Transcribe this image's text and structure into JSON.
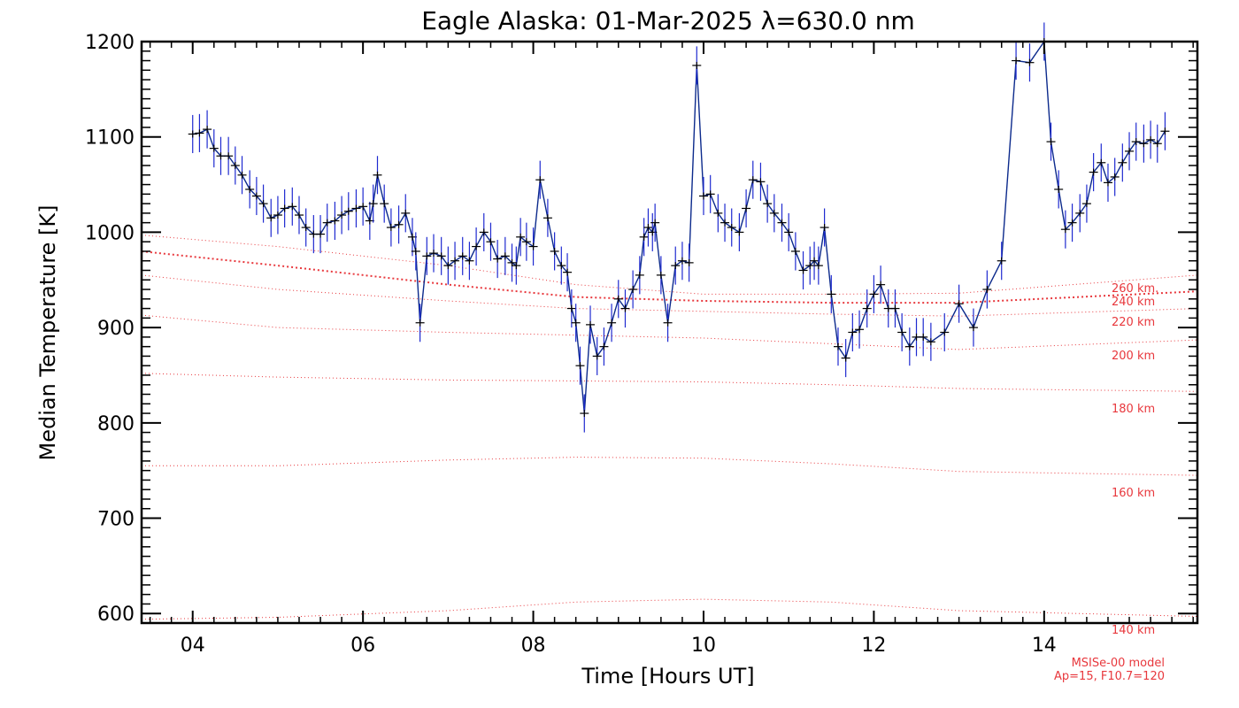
{
  "chart_data": {
    "type": "line",
    "title": "Eagle Alaska: 01-Mar-2025 λ=630.0 nm",
    "xlabel": "Time [Hours UT]",
    "ylabel": "Median Temperature [K]",
    "xlim": [
      3.4,
      15.8
    ],
    "ylim": [
      590,
      1200
    ],
    "x_ticks": [
      4,
      6,
      8,
      10,
      12,
      14
    ],
    "x_tick_labels": [
      "04",
      "06",
      "08",
      "10",
      "12",
      "14"
    ],
    "y_ticks": [
      600,
      700,
      800,
      900,
      1000,
      1100,
      1200
    ],
    "y_tick_labels": [
      "600",
      "700",
      "800",
      "900",
      "1000",
      "1100",
      "1200"
    ],
    "grid": false,
    "colors": {
      "data_line": "#000000",
      "error_bars": "#1f2ad0",
      "model": "#e8383d"
    },
    "series": [
      {
        "name": "",
        "x": [
          4.0,
          4.08,
          4.17,
          4.25,
          4.33,
          4.42,
          4.5,
          4.58,
          4.67,
          4.75,
          4.83,
          4.92,
          5.0,
          5.08,
          5.17,
          5.25,
          5.33,
          5.42,
          5.5,
          5.58,
          5.67,
          5.75,
          5.83,
          5.92,
          6.0,
          6.08,
          6.12,
          6.17,
          6.25,
          6.33,
          6.42,
          6.5,
          6.58,
          6.62,
          6.67,
          6.75,
          6.83,
          6.92,
          7.0,
          7.08,
          7.17,
          7.25,
          7.33,
          7.42,
          7.5,
          7.58,
          7.67,
          7.75,
          7.8,
          7.85,
          7.92,
          8.0,
          8.08,
          8.17,
          8.25,
          8.33,
          8.4,
          8.45,
          8.5,
          8.55,
          8.6,
          8.67,
          8.75,
          8.83,
          8.92,
          9.0,
          9.08,
          9.17,
          9.25,
          9.3,
          9.35,
          9.4,
          9.43,
          9.5,
          9.58,
          9.67,
          9.75,
          9.83,
          9.92,
          10.0,
          10.08,
          10.17,
          10.25,
          10.33,
          10.42,
          10.5,
          10.58,
          10.67,
          10.75,
          10.83,
          10.92,
          11.0,
          11.08,
          11.17,
          11.25,
          11.3,
          11.35,
          11.42,
          11.5,
          11.58,
          11.67,
          11.75,
          11.83,
          11.92,
          12.0,
          12.08,
          12.17,
          12.25,
          12.33,
          12.42,
          12.5,
          12.58,
          12.67,
          12.83,
          13.0,
          13.17,
          13.33,
          13.5,
          13.67,
          13.83,
          14.0,
          14.08,
          14.17,
          14.25,
          14.33,
          14.42,
          14.5,
          14.58,
          14.67,
          14.75,
          14.83,
          14.92,
          15.0,
          15.08,
          15.17,
          15.25,
          15.33,
          15.42
        ],
        "y": [
          1103,
          1104,
          1108,
          1088,
          1080,
          1080,
          1070,
          1060,
          1045,
          1038,
          1030,
          1015,
          1018,
          1025,
          1027,
          1018,
          1005,
          998,
          998,
          1010,
          1012,
          1018,
          1022,
          1025,
          1027,
          1012,
          1030,
          1060,
          1030,
          1005,
          1008,
          1020,
          995,
          980,
          905,
          975,
          978,
          975,
          965,
          970,
          975,
          970,
          985,
          1000,
          990,
          972,
          975,
          968,
          965,
          995,
          990,
          985,
          1055,
          1015,
          980,
          965,
          958,
          920,
          905,
          860,
          810,
          903,
          870,
          880,
          905,
          930,
          920,
          940,
          955,
          995,
          1005,
          1000,
          1010,
          955,
          905,
          965,
          970,
          968,
          1175,
          1038,
          1040,
          1020,
          1010,
          1005,
          1000,
          1025,
          1055,
          1053,
          1030,
          1020,
          1010,
          1000,
          980,
          960,
          965,
          970,
          965,
          1005,
          935,
          880,
          868,
          895,
          898,
          920,
          935,
          945,
          920,
          920,
          895,
          880,
          890,
          890,
          885,
          895,
          925,
          900,
          940,
          970,
          1180,
          1178,
          1200,
          1095,
          1045,
          1003,
          1010,
          1020,
          1030,
          1063,
          1073,
          1052,
          1058,
          1073,
          1085,
          1095,
          1093,
          1097,
          1093,
          1106
        ]
      }
    ],
    "model_curves": [
      {
        "name": "140 km",
        "x": [
          3.4,
          5.0,
          7.0,
          8.5,
          10.0,
          11.5,
          13.0,
          15.8
        ],
        "y": [
          594,
          596,
          603,
          612,
          615,
          612,
          603,
          597
        ]
      },
      {
        "name": "160 km",
        "x": [
          3.4,
          5.0,
          7.0,
          8.5,
          10.0,
          11.5,
          13.0,
          15.8
        ],
        "y": [
          755,
          755,
          761,
          764,
          763,
          757,
          749,
          745
        ]
      },
      {
        "name": "180 km",
        "x": [
          3.4,
          5.0,
          7.0,
          8.5,
          10.0,
          11.5,
          13.0,
          15.8
        ],
        "y": [
          852,
          848,
          845,
          844,
          843,
          840,
          836,
          833
        ]
      },
      {
        "name": "200 km",
        "x": [
          3.4,
          5.0,
          7.0,
          8.5,
          10.0,
          11.5,
          13.0,
          15.8
        ],
        "y": [
          913,
          900,
          895,
          892,
          889,
          883,
          877,
          887
        ]
      },
      {
        "name": "220 km",
        "x": [
          3.4,
          5.0,
          7.0,
          8.5,
          10.0,
          11.5,
          13.0,
          15.8
        ],
        "y": [
          955,
          940,
          928,
          920,
          917,
          914,
          912,
          920
        ]
      },
      {
        "name": "240 km",
        "x": [
          3.4,
          5.0,
          7.0,
          8.5,
          10.0,
          11.5,
          13.0,
          15.8
        ],
        "y": [
          980,
          965,
          945,
          932,
          928,
          926,
          926,
          938
        ]
      },
      {
        "name": "260 km",
        "x": [
          3.4,
          5.0,
          7.0,
          8.5,
          10.0,
          11.5,
          13.0,
          15.8
        ],
        "y": [
          997,
          985,
          965,
          945,
          935,
          935,
          936,
          955
        ]
      }
    ],
    "model_labels": {
      "k140": "140 km",
      "k160": "160 km",
      "k180": "180 km",
      "k200": "200 km",
      "k220": "220 km",
      "k240": "240 km",
      "k260": "260 km."
    },
    "annotations": [
      "MSISe-00 model",
      "Ap=15, F10.7=120"
    ]
  }
}
